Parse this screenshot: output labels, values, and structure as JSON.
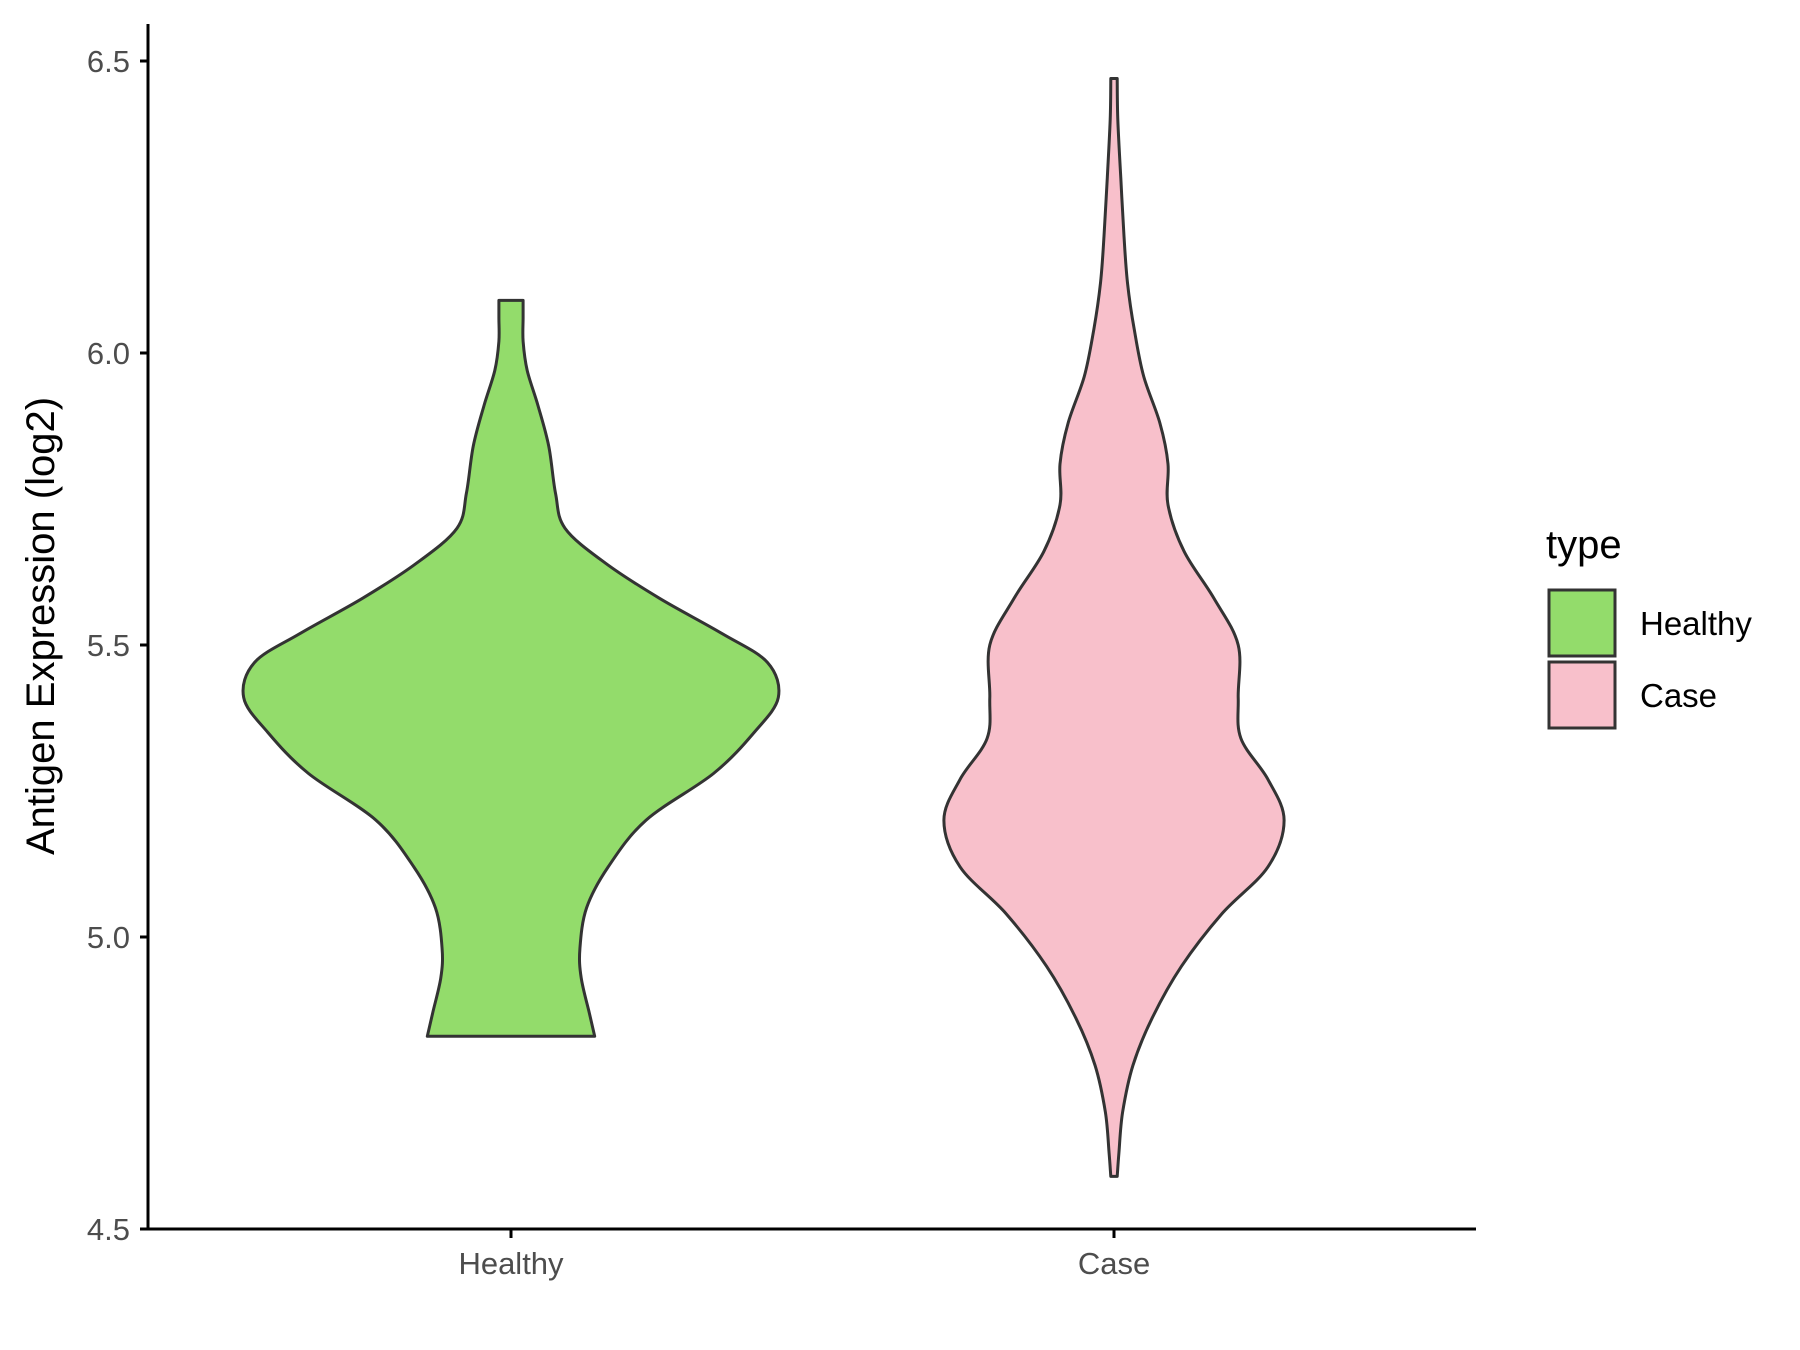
{
  "chart_data": {
    "type": "violin",
    "title": "",
    "xlabel": "",
    "ylabel": "Antigen Expression (log2)",
    "ylim": [
      4.5,
      6.55
    ],
    "yticks": [
      4.5,
      5.0,
      5.5,
      6.0,
      6.5
    ],
    "ytick_labels": [
      "4.5",
      "5.0",
      "5.5",
      "6.0",
      "6.5"
    ],
    "categories": [
      "Healthy",
      "Case"
    ],
    "grid": false,
    "legend": {
      "title": "type",
      "placement": "right",
      "entries": [
        {
          "label": "Healthy",
          "color": "#93dc6b"
        },
        {
          "label": "Case",
          "color": "#f8c0cb"
        }
      ]
    },
    "series": [
      {
        "category": "Healthy",
        "color": "#93dc6b",
        "min": 4.83,
        "max": 6.09,
        "density_profile": [
          [
            4.83,
            0.31
          ],
          [
            4.87,
            0.29
          ],
          [
            4.93,
            0.26
          ],
          [
            4.98,
            0.255
          ],
          [
            5.05,
            0.28
          ],
          [
            5.12,
            0.36
          ],
          [
            5.2,
            0.5
          ],
          [
            5.28,
            0.75
          ],
          [
            5.35,
            0.9
          ],
          [
            5.41,
            0.99
          ],
          [
            5.47,
            0.95
          ],
          [
            5.52,
            0.78
          ],
          [
            5.58,
            0.55
          ],
          [
            5.64,
            0.35
          ],
          [
            5.7,
            0.2
          ],
          [
            5.76,
            0.165
          ],
          [
            5.84,
            0.14
          ],
          [
            5.91,
            0.1
          ],
          [
            5.97,
            0.06
          ],
          [
            6.02,
            0.045
          ],
          [
            6.06,
            0.045
          ],
          [
            6.09,
            0.045
          ]
        ]
      },
      {
        "category": "Case",
        "color": "#f8c0cb",
        "min": 4.59,
        "max": 6.47,
        "density_profile": [
          [
            4.59,
            0.012
          ],
          [
            4.63,
            0.018
          ],
          [
            4.7,
            0.032
          ],
          [
            4.78,
            0.07
          ],
          [
            4.86,
            0.14
          ],
          [
            4.95,
            0.25
          ],
          [
            5.04,
            0.4
          ],
          [
            5.12,
            0.57
          ],
          [
            5.2,
            0.63
          ],
          [
            5.27,
            0.57
          ],
          [
            5.34,
            0.47
          ],
          [
            5.41,
            0.46
          ],
          [
            5.5,
            0.46
          ],
          [
            5.58,
            0.37
          ],
          [
            5.66,
            0.26
          ],
          [
            5.74,
            0.2
          ],
          [
            5.81,
            0.2
          ],
          [
            5.88,
            0.17
          ],
          [
            5.96,
            0.11
          ],
          [
            6.04,
            0.075
          ],
          [
            6.12,
            0.05
          ],
          [
            6.2,
            0.037
          ],
          [
            6.3,
            0.025
          ],
          [
            6.4,
            0.014
          ],
          [
            6.47,
            0.012
          ]
        ]
      }
    ]
  }
}
